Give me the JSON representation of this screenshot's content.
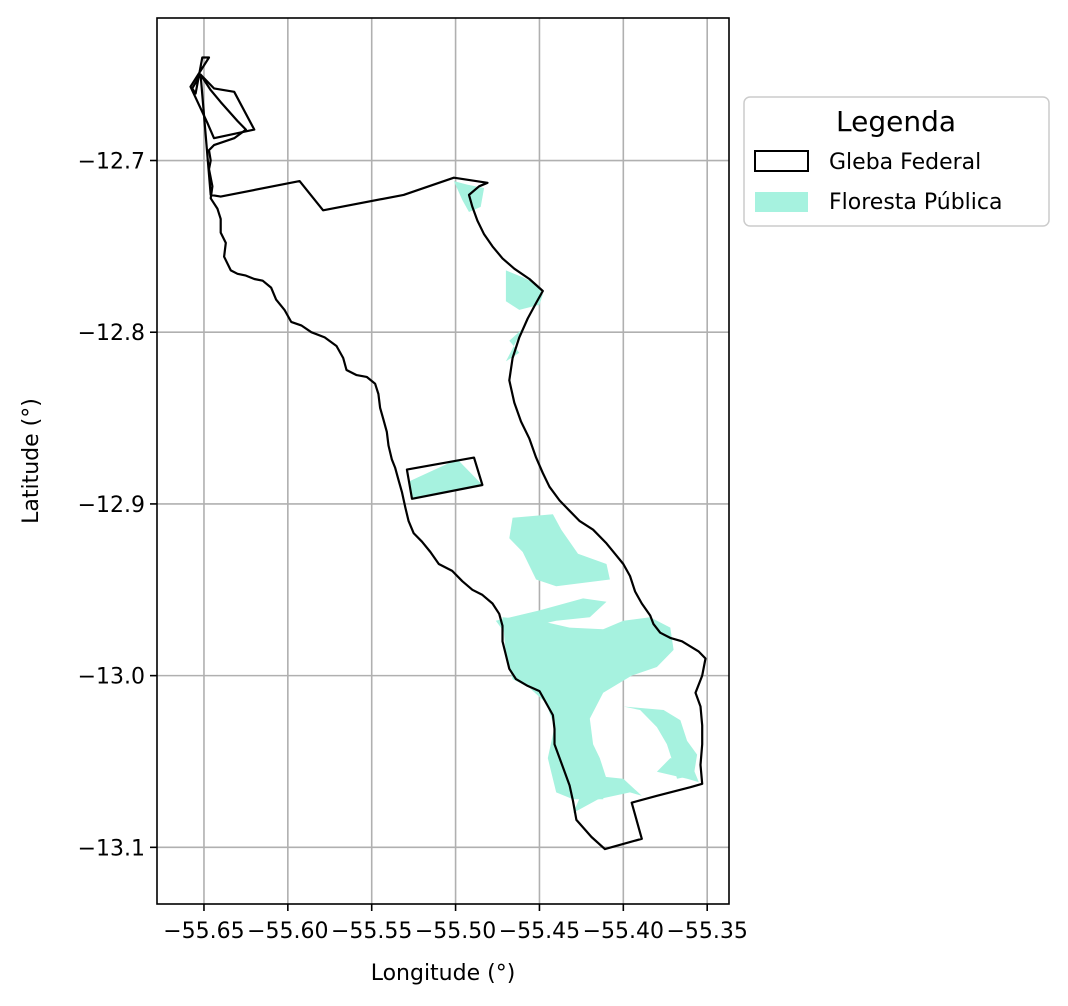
{
  "chart_data": {
    "type": "map",
    "xlabel": "Longitude (°)",
    "ylabel": "Latitude (°)",
    "xlim": [
      -55.678,
      -55.337
    ],
    "ylim": [
      -13.133,
      -12.617
    ],
    "xticks": [
      -55.65,
      -55.6,
      -55.55,
      -55.5,
      -55.45,
      -55.4,
      -55.35
    ],
    "xtick_labels": [
      "−55.65",
      "−55.60",
      "−55.55",
      "−55.50",
      "−55.45",
      "−55.40",
      "−55.35"
    ],
    "yticks": [
      -12.7,
      -12.8,
      -12.9,
      -13.0,
      -13.1
    ],
    "ytick_labels": [
      "−12.7",
      "−12.8",
      "−12.9",
      "−13.0",
      "−13.1"
    ],
    "grid": true,
    "legend": {
      "title": "Legenda",
      "placement": "outside-right",
      "entries": [
        {
          "label": "Gleba Federal",
          "style": "outline",
          "color": "#000000"
        },
        {
          "label": "Floresta Pública",
          "style": "fill",
          "color": "#a6f2df"
        }
      ]
    },
    "layers": [
      {
        "name": "Gleba Federal",
        "style": "outline",
        "color": "#000000",
        "polygons": [
          [
            [
              -55.652,
              -12.65
            ],
            [
              -55.646,
              -12.659
            ],
            [
              -55.64,
              -12.666
            ],
            [
              -55.63,
              -12.677
            ],
            [
              -55.625,
              -12.682
            ],
            [
              -55.632,
              -12.687
            ],
            [
              -55.644,
              -12.691
            ],
            [
              -55.647,
              -12.694
            ],
            [
              -55.646,
              -12.7
            ],
            [
              -55.647,
              -12.705
            ],
            [
              -55.645,
              -12.715
            ],
            [
              -55.646,
              -12.722
            ],
            [
              -55.642,
              -12.728
            ],
            [
              -55.64,
              -12.734
            ],
            [
              -55.64,
              -12.742
            ],
            [
              -55.637,
              -12.748
            ],
            [
              -55.638,
              -12.756
            ],
            [
              -55.634,
              -12.764
            ],
            [
              -55.63,
              -12.766
            ],
            [
              -55.625,
              -12.767
            ],
            [
              -55.62,
              -12.769
            ],
            [
              -55.615,
              -12.77
            ],
            [
              -55.61,
              -12.774
            ],
            [
              -55.607,
              -12.781
            ],
            [
              -55.602,
              -12.787
            ],
            [
              -55.598,
              -12.794
            ],
            [
              -55.592,
              -12.796
            ],
            [
              -55.586,
              -12.8
            ],
            [
              -55.578,
              -12.803
            ],
            [
              -55.571,
              -12.808
            ],
            [
              -55.567,
              -12.815
            ],
            [
              -55.565,
              -12.822
            ],
            [
              -55.559,
              -12.825
            ],
            [
              -55.553,
              -12.826
            ],
            [
              -55.548,
              -12.83
            ],
            [
              -55.546,
              -12.836
            ],
            [
              -55.545,
              -12.844
            ],
            [
              -55.543,
              -12.851
            ],
            [
              -55.541,
              -12.858
            ],
            [
              -55.54,
              -12.866
            ],
            [
              -55.538,
              -12.874
            ],
            [
              -55.536,
              -12.879
            ],
            [
              -55.534,
              -12.886
            ],
            [
              -55.532,
              -12.893
            ],
            [
              -55.53,
              -12.902
            ],
            [
              -55.528,
              -12.91
            ],
            [
              -55.525,
              -12.917
            ],
            [
              -55.52,
              -12.922
            ],
            [
              -55.515,
              -12.928
            ],
            [
              -55.51,
              -12.935
            ],
            [
              -55.502,
              -12.939
            ],
            [
              -55.496,
              -12.945
            ],
            [
              -55.49,
              -12.95
            ],
            [
              -55.484,
              -12.953
            ],
            [
              -55.478,
              -12.958
            ],
            [
              -55.474,
              -12.964
            ],
            [
              -55.472,
              -12.971
            ],
            [
              -55.472,
              -12.98
            ],
            [
              -55.47,
              -12.988
            ],
            [
              -55.468,
              -12.996
            ],
            [
              -55.464,
              -13.002
            ],
            [
              -55.457,
              -13.006
            ],
            [
              -55.45,
              -13.009
            ],
            [
              -55.446,
              -13.016
            ],
            [
              -55.442,
              -13.023
            ],
            [
              -55.441,
              -13.031
            ],
            [
              -55.441,
              -13.04
            ],
            [
              -55.438,
              -13.048
            ],
            [
              -55.435,
              -13.056
            ],
            [
              -55.432,
              -13.064
            ],
            [
              -55.43,
              -13.073
            ],
            [
              -55.428,
              -13.084
            ],
            [
              -55.419,
              -13.094
            ],
            [
              -55.411,
              -13.101
            ],
            [
              -55.389,
              -13.095
            ],
            [
              -55.395,
              -13.074
            ],
            [
              -55.38,
              -13.07
            ],
            [
              -55.36,
              -13.065
            ],
            [
              -55.353,
              -13.063
            ],
            [
              -55.354,
              -13.052
            ],
            [
              -55.353,
              -13.04
            ],
            [
              -55.353,
              -13.029
            ],
            [
              -55.354,
              -13.018
            ],
            [
              -55.357,
              -13.01
            ],
            [
              -55.353,
              -13.0
            ],
            [
              -55.351,
              -12.99
            ],
            [
              -55.355,
              -12.986
            ],
            [
              -55.36,
              -12.983
            ],
            [
              -55.365,
              -12.98
            ],
            [
              -55.372,
              -12.978
            ],
            [
              -55.378,
              -12.975
            ],
            [
              -55.382,
              -12.97
            ],
            [
              -55.384,
              -12.965
            ],
            [
              -55.389,
              -12.958
            ],
            [
              -55.393,
              -12.951
            ],
            [
              -55.396,
              -12.942
            ],
            [
              -55.4,
              -12.935
            ],
            [
              -55.405,
              -12.929
            ],
            [
              -55.41,
              -12.923
            ],
            [
              -55.418,
              -12.915
            ],
            [
              -55.426,
              -12.91
            ],
            [
              -55.432,
              -12.904
            ],
            [
              -55.438,
              -12.898
            ],
            [
              -55.444,
              -12.89
            ],
            [
              -55.448,
              -12.882
            ],
            [
              -55.452,
              -12.873
            ],
            [
              -55.456,
              -12.862
            ],
            [
              -55.461,
              -12.852
            ],
            [
              -55.465,
              -12.841
            ],
            [
              -55.468,
              -12.828
            ],
            [
              -55.466,
              -12.815
            ],
            [
              -55.462,
              -12.803
            ],
            [
              -55.457,
              -12.792
            ],
            [
              -55.452,
              -12.783
            ],
            [
              -55.448,
              -12.776
            ],
            [
              -55.456,
              -12.769
            ],
            [
              -55.465,
              -12.763
            ],
            [
              -55.472,
              -12.757
            ],
            [
              -55.478,
              -12.75
            ],
            [
              -55.483,
              -12.743
            ],
            [
              -55.487,
              -12.735
            ],
            [
              -55.49,
              -12.727
            ],
            [
              -55.492,
              -12.72
            ],
            [
              -55.486,
              -12.715
            ],
            [
              -55.481,
              -12.713
            ],
            [
              -55.501,
              -12.71
            ],
            [
              -55.531,
              -12.72
            ],
            [
              -55.579,
              -12.729
            ],
            [
              -55.593,
              -12.712
            ],
            [
              -55.64,
              -12.721
            ],
            [
              -55.646,
              -12.72
            ]
          ],
          [
            [
              -55.644,
              -12.687
            ],
            [
              -55.62,
              -12.682
            ],
            [
              -55.632,
              -12.66
            ],
            [
              -55.644,
              -12.658
            ],
            [
              -55.652,
              -12.65
            ],
            [
              -55.657,
              -12.658
            ],
            [
              -55.655,
              -12.661
            ],
            [
              -55.651,
              -12.64
            ],
            [
              -55.647,
              -12.64
            ],
            [
              -55.658,
              -12.657
            ],
            [
              -55.648,
              -12.678
            ],
            [
              -55.644,
              -12.687
            ]
          ],
          [
            [
              -55.529,
              -12.88
            ],
            [
              -55.489,
              -12.873
            ],
            [
              -55.484,
              -12.889
            ],
            [
              -55.526,
              -12.897
            ],
            [
              -55.529,
              -12.88
            ]
          ]
        ]
      },
      {
        "name": "Floresta Pública",
        "style": "fill",
        "color": "#a6f2df",
        "polygons": [
          [
            [
              -55.501,
              -12.712
            ],
            [
              -55.493,
              -12.714
            ],
            [
              -55.483,
              -12.716
            ],
            [
              -55.485,
              -12.727
            ],
            [
              -55.492,
              -12.73
            ],
            [
              -55.496,
              -12.723
            ]
          ],
          [
            [
              -55.47,
              -12.764
            ],
            [
              -55.46,
              -12.768
            ],
            [
              -55.452,
              -12.772
            ],
            [
              -55.448,
              -12.778
            ],
            [
              -55.45,
              -12.784
            ],
            [
              -55.462,
              -12.787
            ],
            [
              -55.47,
              -12.782
            ]
          ],
          [
            [
              -55.46,
              -12.798
            ],
            [
              -55.468,
              -12.805
            ],
            [
              -55.462,
              -12.812
            ],
            [
              -55.47,
              -12.817
            ]
          ],
          [
            [
              -55.528,
              -12.887
            ],
            [
              -55.499,
              -12.874
            ],
            [
              -55.484,
              -12.889
            ],
            [
              -55.526,
              -12.897
            ]
          ],
          [
            [
              -55.466,
              -12.908
            ],
            [
              -55.442,
              -12.906
            ],
            [
              -55.437,
              -12.915
            ],
            [
              -55.427,
              -12.929
            ],
            [
              -55.41,
              -12.935
            ],
            [
              -55.408,
              -12.944
            ],
            [
              -55.44,
              -12.948
            ],
            [
              -55.452,
              -12.944
            ],
            [
              -55.46,
              -12.928
            ],
            [
              -55.468,
              -12.92
            ]
          ],
          [
            [
              -55.476,
              -12.968
            ],
            [
              -55.45,
              -12.962
            ],
            [
              -55.424,
              -12.955
            ],
            [
              -55.41,
              -12.957
            ],
            [
              -55.42,
              -12.966
            ],
            [
              -55.44,
              -12.968
            ],
            [
              -55.458,
              -12.972
            ],
            [
              -55.47,
              -12.976
            ]
          ],
          [
            [
              -55.472,
              -12.966
            ],
            [
              -55.45,
              -12.968
            ],
            [
              -55.432,
              -12.972
            ],
            [
              -55.412,
              -12.973
            ],
            [
              -55.4,
              -12.968
            ],
            [
              -55.384,
              -12.966
            ],
            [
              -55.372,
              -12.972
            ],
            [
              -55.37,
              -12.985
            ],
            [
              -55.38,
              -12.995
            ],
            [
              -55.395,
              -13.0
            ],
            [
              -55.412,
              -13.01
            ],
            [
              -55.42,
              -13.025
            ],
            [
              -55.418,
              -13.04
            ],
            [
              -55.414,
              -13.048
            ],
            [
              -55.41,
              -13.06
            ],
            [
              -55.412,
              -13.072
            ],
            [
              -55.43,
              -13.072
            ],
            [
              -55.44,
              -13.068
            ],
            [
              -55.445,
              -13.048
            ],
            [
              -55.441,
              -13.03
            ],
            [
              -55.446,
              -13.016
            ],
            [
              -55.456,
              -13.007
            ],
            [
              -55.466,
              -13.002
            ],
            [
              -55.47,
              -12.988
            ]
          ],
          [
            [
              -55.4,
              -13.018
            ],
            [
              -55.39,
              -13.02
            ],
            [
              -55.38,
              -13.03
            ],
            [
              -55.374,
              -13.04
            ],
            [
              -55.37,
              -13.052
            ],
            [
              -55.368,
              -13.06
            ],
            [
              -55.358,
              -13.058
            ],
            [
              -55.356,
              -13.046
            ],
            [
              -55.362,
              -13.038
            ],
            [
              -55.366,
              -13.026
            ],
            [
              -55.376,
              -13.02
            ]
          ],
          [
            [
              -55.38,
              -13.056
            ],
            [
              -55.362,
              -13.06
            ],
            [
              -55.355,
              -13.062
            ],
            [
              -55.36,
              -13.05
            ],
            [
              -55.372,
              -13.048
            ]
          ],
          [
            [
              -55.43,
              -13.08
            ],
            [
              -55.415,
              -13.072
            ],
            [
              -55.396,
              -13.068
            ],
            [
              -55.389,
              -13.07
            ],
            [
              -55.4,
              -13.06
            ],
            [
              -55.42,
              -13.058
            ]
          ]
        ]
      }
    ]
  }
}
